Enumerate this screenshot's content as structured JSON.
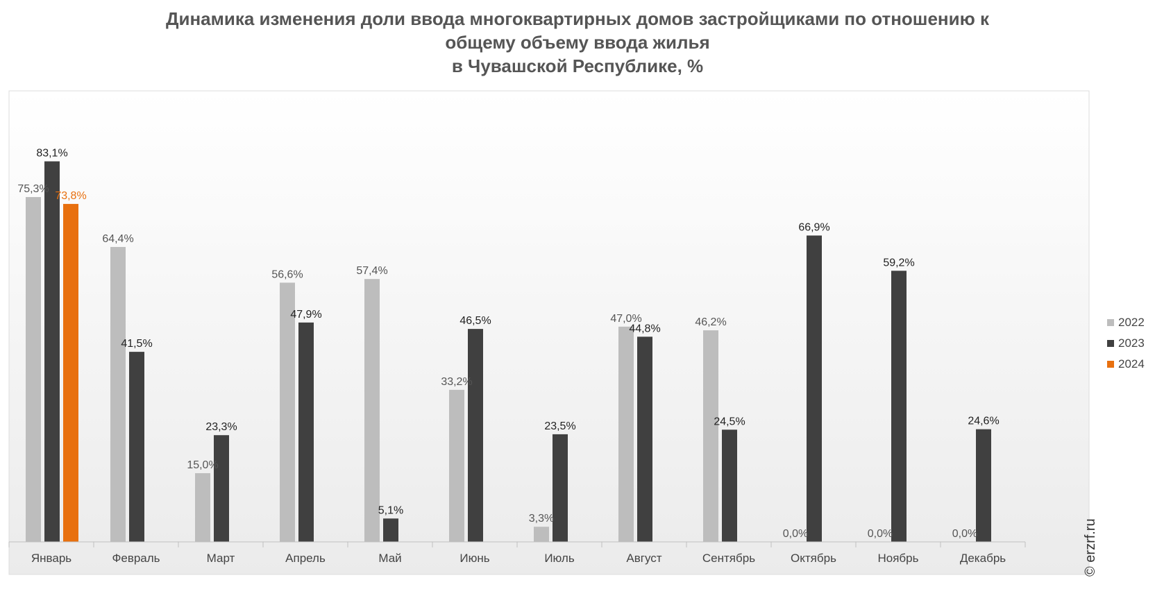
{
  "title_lines": [
    "Динамика изменения доли ввода многоквартирных домов застройщиками по отношению к",
    "общему объему ввода жилья",
    "в Чувашской Республике, %"
  ],
  "copyright": "© erzrf.ru",
  "chart_data": {
    "type": "bar",
    "title": "Динамика изменения доли ввода многоквартирных домов застройщиками по отношению к общему объему ввода жилья в Чувашской Республике, %",
    "categories": [
      "Январь",
      "Февраль",
      "Март",
      "Апрель",
      "Май",
      "Июнь",
      "Июль",
      "Август",
      "Сентябрь",
      "Октябрь",
      "Ноябрь",
      "Декабрь"
    ],
    "ylim": [
      0,
      90
    ],
    "grid": false,
    "legend_position": "right",
    "series": [
      {
        "name": "2022",
        "color": "#bdbdbd",
        "label_color": "#555555",
        "values": [
          75.3,
          64.4,
          15.0,
          56.6,
          57.4,
          33.2,
          3.3,
          47.0,
          46.2,
          0.0,
          0.0,
          0.0
        ],
        "labels": [
          "75,3%",
          "64,4%",
          "15,0%",
          "56,6%",
          "57,4%",
          "33,2%",
          "3,3%",
          "47,0%",
          "46,2%",
          "0,0%",
          "0,0%",
          "0,0%"
        ]
      },
      {
        "name": "2023",
        "color": "#404040",
        "label_color": "#222222",
        "values": [
          83.1,
          41.5,
          23.3,
          47.9,
          5.1,
          46.5,
          23.5,
          44.8,
          24.5,
          66.9,
          59.2,
          24.6
        ],
        "labels": [
          "83,1%",
          "41,5%",
          "23,3%",
          "47,9%",
          "5,1%",
          "46,5%",
          "23,5%",
          "44,8%",
          "24,5%",
          "66,9%",
          "59,2%",
          "24,6%"
        ]
      },
      {
        "name": "2024",
        "color": "#e8700f",
        "label_color": "#e8700f",
        "values": [
          73.8,
          null,
          null,
          null,
          null,
          null,
          null,
          null,
          null,
          null,
          null,
          null
        ],
        "labels": [
          "73,8%",
          "",
          "",
          "",
          "",
          "",
          "",
          "",
          "",
          "",
          "",
          ""
        ]
      }
    ]
  }
}
